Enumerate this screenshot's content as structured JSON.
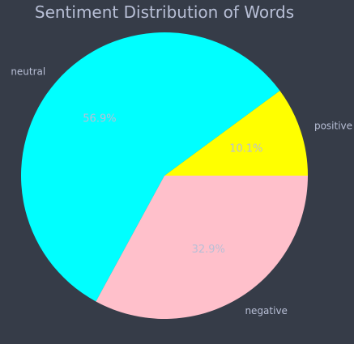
{
  "chart_data": {
    "type": "pie",
    "title": "Sentiment Distribution of Words",
    "slices": [
      {
        "label": "positive",
        "value": 10.1,
        "pct_label": "10.1%",
        "color": "#ffff00"
      },
      {
        "label": "neutral",
        "value": 56.9,
        "pct_label": "56.9%",
        "color": "#00ffff"
      },
      {
        "label": "negative",
        "value": 32.9,
        "pct_label": "32.9%",
        "color": "#ffc0cb"
      }
    ],
    "start_angle_deg": 0,
    "direction": "counterclockwise",
    "legend": "none"
  },
  "theme": {
    "background": "#363c48",
    "text_color": "#b8bfd6"
  }
}
